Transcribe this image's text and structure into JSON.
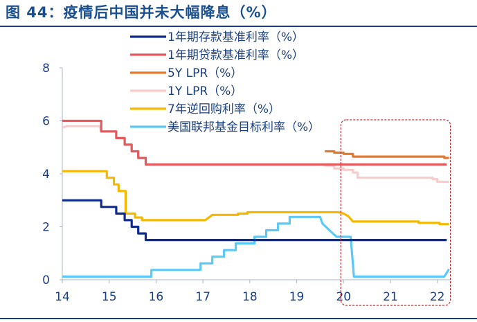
{
  "title": "图 44：疫情后中国并未大幅降息（%）",
  "colors": {
    "title": "#1a4f8f",
    "rule": "#1a3f80",
    "axis_text": "#1a3f80",
    "highlight_box": "#c0272d"
  },
  "highlight_box": {
    "x_range": [
      20.0,
      22.25
    ]
  },
  "chart_data": {
    "type": "line",
    "title": "图 44：疫情后中国并未大幅降息（%）",
    "xlabel": "",
    "ylabel": "",
    "xlim": [
      14,
      22.3
    ],
    "ylim": [
      0,
      8
    ],
    "x_ticks": [
      14,
      15,
      16,
      17,
      18,
      19,
      20,
      21,
      22
    ],
    "x_tick_labels": [
      "14",
      "15",
      "16",
      "17",
      "18",
      "19",
      "20",
      "21",
      "22"
    ],
    "y_ticks": [
      0,
      2,
      4,
      6,
      8
    ],
    "y_tick_labels": [
      "0",
      "2",
      "4",
      "6",
      "8"
    ],
    "grid": false,
    "legend_position": "top",
    "series": [
      {
        "name": "1年期存款基准利率（%）",
        "color": "#0d2b8e",
        "points": [
          [
            14.0,
            3.0
          ],
          [
            14.83,
            3.0
          ],
          [
            14.83,
            2.75
          ],
          [
            15.15,
            2.75
          ],
          [
            15.15,
            2.5
          ],
          [
            15.33,
            2.5
          ],
          [
            15.33,
            2.25
          ],
          [
            15.48,
            2.25
          ],
          [
            15.48,
            2.0
          ],
          [
            15.62,
            2.0
          ],
          [
            15.62,
            1.75
          ],
          [
            15.78,
            1.75
          ],
          [
            15.78,
            1.5
          ],
          [
            22.2,
            1.5
          ]
        ]
      },
      {
        "name": "1年期贷款基准利率（%）",
        "color": "#e05a5e",
        "points": [
          [
            14.0,
            6.0
          ],
          [
            14.83,
            6.0
          ],
          [
            14.83,
            5.6
          ],
          [
            15.15,
            5.6
          ],
          [
            15.15,
            5.35
          ],
          [
            15.33,
            5.35
          ],
          [
            15.33,
            5.1
          ],
          [
            15.48,
            5.1
          ],
          [
            15.48,
            4.85
          ],
          [
            15.62,
            4.85
          ],
          [
            15.62,
            4.6
          ],
          [
            15.78,
            4.6
          ],
          [
            15.78,
            4.35
          ],
          [
            22.2,
            4.35
          ]
        ]
      },
      {
        "name": "5Y LPR（%）",
        "color": "#e07a2c",
        "points": [
          [
            19.6,
            4.85
          ],
          [
            19.8,
            4.85
          ],
          [
            19.8,
            4.8
          ],
          [
            20.0,
            4.8
          ],
          [
            20.0,
            4.75
          ],
          [
            20.2,
            4.75
          ],
          [
            20.2,
            4.65
          ],
          [
            22.15,
            4.65
          ],
          [
            22.15,
            4.6
          ],
          [
            22.25,
            4.6
          ]
        ]
      },
      {
        "name": "1Y LPR（%）",
        "color": "#f6cccc",
        "points": [
          [
            14.0,
            5.75
          ],
          [
            14.1,
            5.8
          ],
          [
            14.8,
            5.8
          ],
          [
            14.83,
            5.6
          ],
          [
            15.15,
            5.6
          ],
          [
            15.15,
            5.35
          ],
          [
            15.33,
            5.35
          ],
          [
            15.33,
            5.1
          ],
          [
            15.48,
            5.1
          ],
          [
            15.48,
            4.85
          ],
          [
            15.62,
            4.85
          ],
          [
            15.62,
            4.6
          ],
          [
            15.78,
            4.6
          ],
          [
            15.78,
            4.35
          ],
          [
            19.6,
            4.35
          ],
          [
            19.6,
            4.31
          ],
          [
            19.8,
            4.31
          ],
          [
            19.8,
            4.2
          ],
          [
            20.0,
            4.2
          ],
          [
            20.0,
            4.15
          ],
          [
            20.2,
            4.15
          ],
          [
            20.2,
            4.05
          ],
          [
            20.3,
            4.05
          ],
          [
            20.3,
            3.85
          ],
          [
            21.9,
            3.85
          ],
          [
            21.9,
            3.8
          ],
          [
            22.0,
            3.8
          ],
          [
            22.0,
            3.7
          ],
          [
            22.25,
            3.7
          ]
        ]
      },
      {
        "name": "7年逆回购利率（%）",
        "color": "#f5b800",
        "points": [
          [
            14.0,
            4.1
          ],
          [
            14.95,
            4.1
          ],
          [
            14.95,
            3.85
          ],
          [
            15.1,
            3.85
          ],
          [
            15.1,
            3.6
          ],
          [
            15.2,
            3.6
          ],
          [
            15.2,
            3.35
          ],
          [
            15.35,
            3.35
          ],
          [
            15.35,
            2.5
          ],
          [
            15.55,
            2.5
          ],
          [
            15.55,
            2.35
          ],
          [
            15.7,
            2.35
          ],
          [
            15.7,
            2.25
          ],
          [
            17.05,
            2.25
          ],
          [
            17.2,
            2.45
          ],
          [
            17.75,
            2.45
          ],
          [
            17.75,
            2.5
          ],
          [
            17.95,
            2.5
          ],
          [
            17.95,
            2.55
          ],
          [
            19.9,
            2.55
          ],
          [
            20.0,
            2.5
          ],
          [
            20.1,
            2.4
          ],
          [
            20.2,
            2.2
          ],
          [
            21.6,
            2.2
          ],
          [
            21.6,
            2.15
          ],
          [
            22.05,
            2.15
          ],
          [
            22.05,
            2.1
          ],
          [
            22.25,
            2.1
          ]
        ]
      },
      {
        "name": "美国联邦基金目标利率（%）",
        "color": "#5bc8f5",
        "points": [
          [
            14.0,
            0.12
          ],
          [
            15.9,
            0.12
          ],
          [
            15.9,
            0.37
          ],
          [
            16.95,
            0.37
          ],
          [
            16.95,
            0.62
          ],
          [
            17.2,
            0.62
          ],
          [
            17.2,
            0.87
          ],
          [
            17.45,
            0.87
          ],
          [
            17.45,
            1.12
          ],
          [
            17.7,
            1.12
          ],
          [
            17.7,
            1.37
          ],
          [
            18.1,
            1.37
          ],
          [
            18.1,
            1.62
          ],
          [
            18.35,
            1.62
          ],
          [
            18.35,
            1.87
          ],
          [
            18.6,
            1.87
          ],
          [
            18.6,
            2.12
          ],
          [
            18.85,
            2.12
          ],
          [
            18.85,
            2.37
          ],
          [
            19.5,
            2.37
          ],
          [
            19.55,
            2.12
          ],
          [
            19.7,
            1.87
          ],
          [
            19.85,
            1.62
          ],
          [
            20.15,
            1.62
          ],
          [
            20.18,
            1.0
          ],
          [
            20.22,
            0.12
          ],
          [
            22.15,
            0.12
          ],
          [
            22.25,
            0.4
          ]
        ]
      }
    ]
  }
}
